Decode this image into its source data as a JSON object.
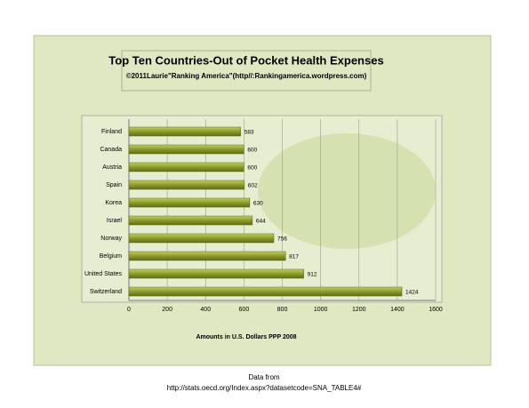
{
  "chart_data": {
    "type": "hbar",
    "title": "Top Ten Countries-Out of Pocket Health Expenses",
    "subtitle": "©2011Laurie\"Ranking America\"(http//:Rankingamerica.wordpress.com)",
    "x_label": "Amounts in U.S. Dollars PPP  2008",
    "categories": [
      "Finland",
      "Canada",
      "Austria",
      "Spain",
      "Korea",
      "Israel",
      "Norway",
      "Belgium",
      "United States",
      "Switzerland"
    ],
    "values": [
      583,
      600,
      600,
      602,
      630,
      644,
      756,
      817,
      912,
      1424
    ],
    "color": "#8c9b2c",
    "xlim": [
      0,
      1600
    ],
    "xticks": [
      0,
      200,
      400,
      600,
      800,
      1000,
      1200,
      1400,
      1600
    ],
    "grid": true,
    "notes": [
      "Data from",
      "http://stats.oecd.org/Index.aspx?datasetcode=SNA_TABLE4#"
    ]
  }
}
